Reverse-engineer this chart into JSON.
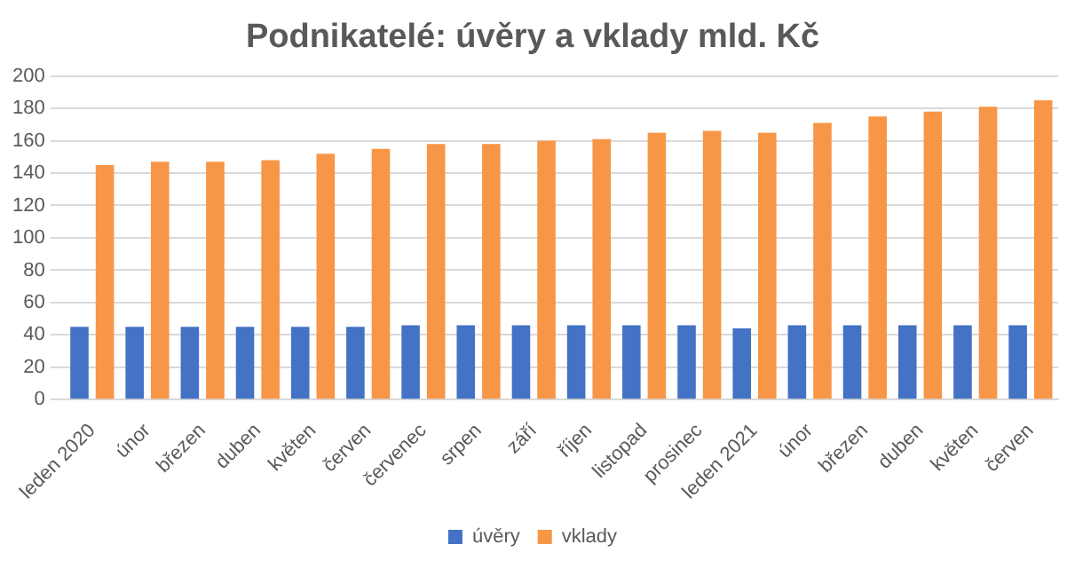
{
  "chart_data": {
    "type": "bar",
    "title": "Podnikatelé: úvěry a vklady mld. Kč",
    "categories": [
      "leden 2020",
      "únor",
      "březen",
      "duben",
      "květen",
      "červen",
      "červenec",
      "srpen",
      "září",
      "říjen",
      "listopad",
      "prosinec",
      "leden 2021",
      "únor",
      "březen",
      "duben",
      "květen",
      "červen"
    ],
    "series": [
      {
        "name": "úvěry",
        "color": "#4472c4",
        "values": [
          45,
          45,
          45,
          45,
          45,
          45,
          46,
          46,
          46,
          46,
          46,
          46,
          44,
          46,
          46,
          46,
          46,
          46
        ]
      },
      {
        "name": "vklady",
        "color": "#f79646",
        "values": [
          145,
          147,
          147,
          148,
          152,
          155,
          158,
          158,
          160,
          161,
          165,
          166,
          165,
          171,
          175,
          178,
          181,
          185
        ]
      }
    ],
    "ylim": [
      0,
      200
    ],
    "yticks": [
      0,
      20,
      40,
      60,
      80,
      100,
      120,
      140,
      160,
      180,
      200
    ],
    "grid": "y",
    "legend": "bottom"
  }
}
